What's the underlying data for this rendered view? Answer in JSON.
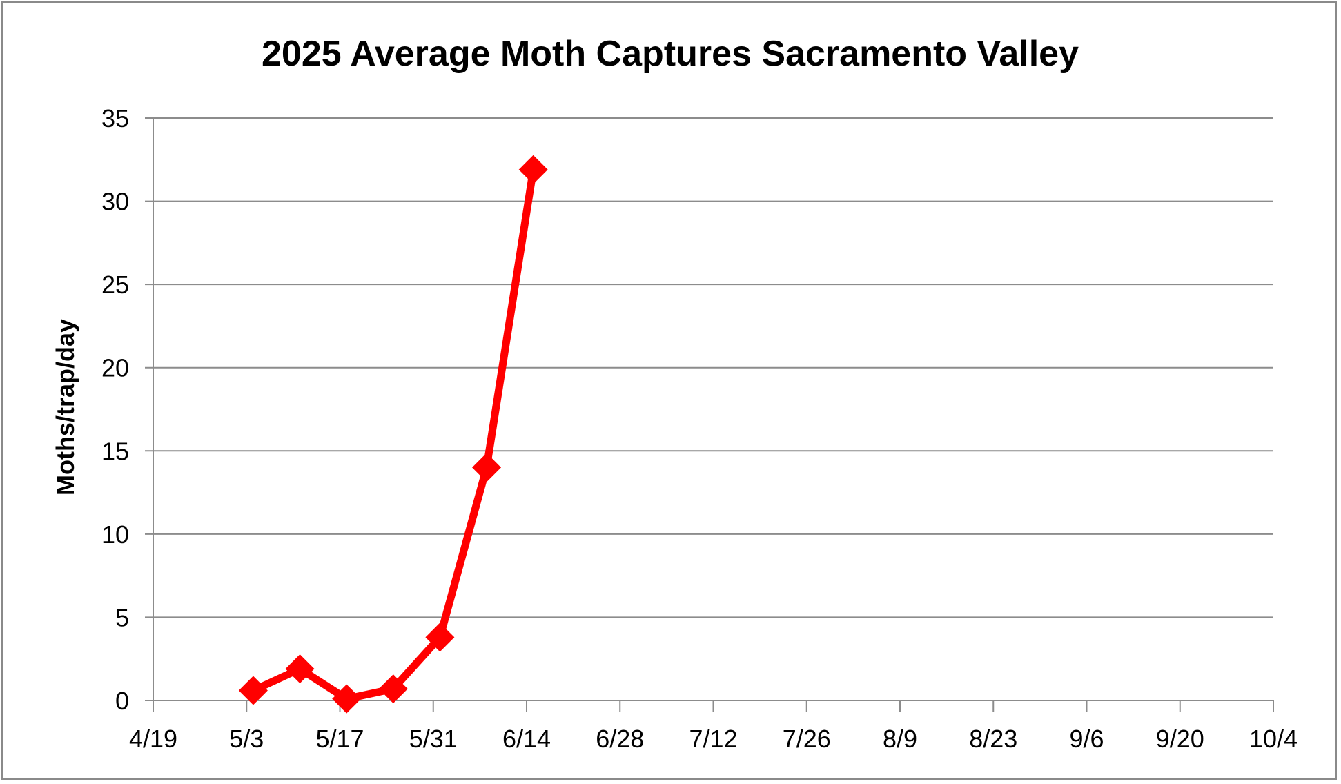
{
  "chart_data": {
    "type": "line",
    "title": "2025 Average Moth Captures Sacramento Valley",
    "xlabel": "",
    "ylabel": "Moths/trap/day",
    "x_tick_labels": [
      "4/19",
      "5/3",
      "5/17",
      "5/31",
      "6/14",
      "6/28",
      "7/12",
      "7/26",
      "8/9",
      "8/23",
      "9/6",
      "9/20",
      "10/4"
    ],
    "y_tick_labels": [
      "0",
      "5",
      "10",
      "15",
      "20",
      "25",
      "30",
      "35"
    ],
    "xlim": [
      "4/19",
      "10/4"
    ],
    "ylim": [
      0,
      35
    ],
    "y_major_unit": 5,
    "grid": "horizontal",
    "legend": "none",
    "series": [
      {
        "color": "#ff0000",
        "marker": "diamond",
        "x": [
          "5/4",
          "5/11",
          "5/18",
          "5/25",
          "6/1",
          "6/8",
          "6/15"
        ],
        "y": [
          0.6,
          1.9,
          0.1,
          0.7,
          3.8,
          14.0,
          31.9
        ]
      }
    ],
    "colors": {
      "gridline": "#8c8c8c",
      "axis": "#8c8c8c",
      "frame": "#8a8a8a"
    }
  }
}
